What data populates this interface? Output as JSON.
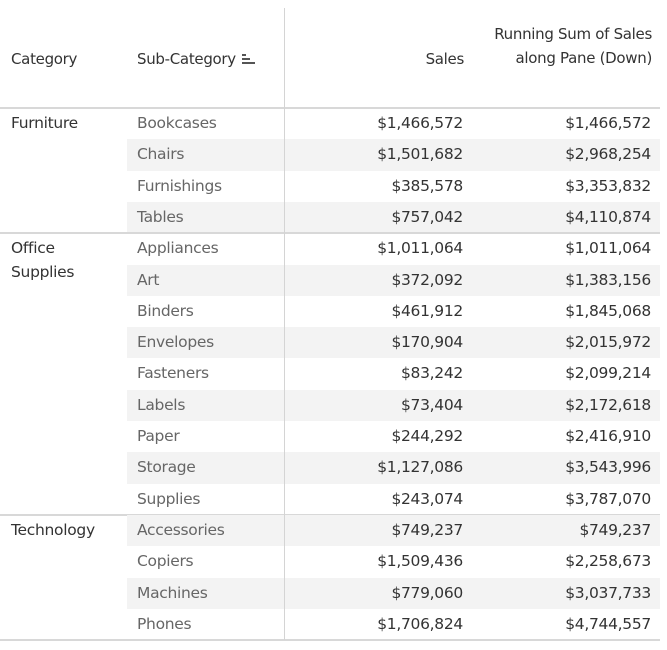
{
  "headers": {
    "category": "Category",
    "sub_category": "Sub-Category",
    "sales": "Sales",
    "running_sum": "Running Sum of Sales along Pane (Down)",
    "sort_icon": "sort-descending-icon"
  },
  "groups": [
    {
      "category": "Furniture",
      "rows": [
        {
          "sub": "Bookcases",
          "sales": "$1,466,572",
          "running": "$1,466,572"
        },
        {
          "sub": "Chairs",
          "sales": "$1,501,682",
          "running": "$2,968,254"
        },
        {
          "sub": "Furnishings",
          "sales": "$385,578",
          "running": "$3,353,832"
        },
        {
          "sub": "Tables",
          "sales": "$757,042",
          "running": "$4,110,874"
        }
      ]
    },
    {
      "category": "Office Supplies",
      "rows": [
        {
          "sub": "Appliances",
          "sales": "$1,011,064",
          "running": "$1,011,064"
        },
        {
          "sub": "Art",
          "sales": "$372,092",
          "running": "$1,383,156"
        },
        {
          "sub": "Binders",
          "sales": "$461,912",
          "running": "$1,845,068"
        },
        {
          "sub": "Envelopes",
          "sales": "$170,904",
          "running": "$2,015,972"
        },
        {
          "sub": "Fasteners",
          "sales": "$83,242",
          "running": "$2,099,214"
        },
        {
          "sub": "Labels",
          "sales": "$73,404",
          "running": "$2,172,618"
        },
        {
          "sub": "Paper",
          "sales": "$244,292",
          "running": "$2,416,910"
        },
        {
          "sub": "Storage",
          "sales": "$1,127,086",
          "running": "$3,543,996"
        },
        {
          "sub": "Supplies",
          "sales": "$243,074",
          "running": "$3,787,070"
        }
      ]
    },
    {
      "category": "Technology",
      "rows": [
        {
          "sub": "Accessories",
          "sales": "$749,237",
          "running": "$749,237"
        },
        {
          "sub": "Copiers",
          "sales": "$1,509,436",
          "running": "$2,258,673"
        },
        {
          "sub": "Machines",
          "sales": "$779,060",
          "running": "$3,037,733"
        },
        {
          "sub": "Phones",
          "sales": "$1,706,824",
          "running": "$4,744,557"
        }
      ]
    }
  ]
}
